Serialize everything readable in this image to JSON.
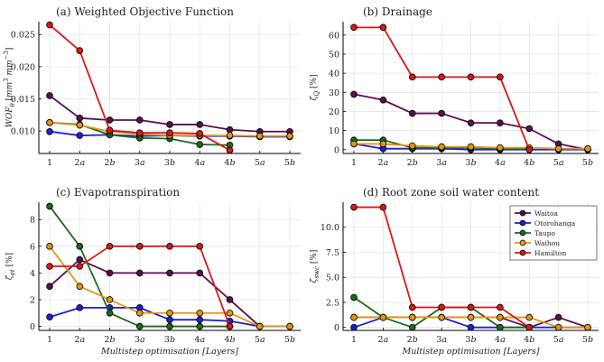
{
  "colors": {
    "Waitoa": "#5a0f4f",
    "Otorohanga": "#1f1fd1",
    "Taupo": "#1c6b1c",
    "Waihou": "#e09614",
    "Hamilton": "#d81818"
  },
  "legend": {
    "position": "top-right of panel (d)",
    "entries": [
      "Waitoa",
      "Otorohanga",
      "Taupo",
      "Waihou",
      "Hamilton"
    ]
  },
  "chart_data": [
    {
      "type": "line",
      "title": "(a) Weighted Objective Function",
      "xlabel": "",
      "ylabel": "WOF_θ [mm³ mm⁻³]",
      "x": [
        "1",
        "2a",
        "2b",
        "3a",
        "3b",
        "4a",
        "4b",
        "5a",
        "5b"
      ],
      "ylim": [
        0.0065,
        0.027
      ],
      "yticks": [
        0.01,
        0.015,
        0.02,
        0.025
      ],
      "ytick_labels": [
        "0.010",
        "0.015",
        "0.020",
        "0.025"
      ],
      "grid": true,
      "series": [
        {
          "name": "Waitoa",
          "values": [
            0.0155,
            0.012,
            0.0117,
            0.0117,
            0.011,
            0.011,
            0.0102,
            0.0099,
            0.0099
          ]
        },
        {
          "name": "Otorohanga",
          "values": [
            0.0099,
            0.0093,
            0.0094,
            0.0092,
            0.0093,
            0.0092,
            0.0092,
            0.0091,
            0.0091
          ]
        },
        {
          "name": "Taupo",
          "values": [
            0.0113,
            0.011,
            0.0094,
            0.0089,
            0.0088,
            0.0079,
            0.0078,
            null,
            null
          ]
        },
        {
          "name": "Waihou",
          "values": [
            0.0113,
            0.0109,
            0.0099,
            0.0095,
            0.0093,
            0.0093,
            0.0093,
            0.0092,
            0.0092
          ]
        },
        {
          "name": "Hamilton",
          "values": [
            0.0265,
            0.0225,
            0.0101,
            0.0097,
            0.0097,
            0.0096,
            0.007,
            null,
            null
          ]
        }
      ]
    },
    {
      "type": "line",
      "title": "(b) Drainage",
      "xlabel": "",
      "ylabel": "ζ_Q [%]",
      "x": [
        "1",
        "2a",
        "2b",
        "3a",
        "3b",
        "4a",
        "4b",
        "5a",
        "5b"
      ],
      "ylim": [
        -2,
        67
      ],
      "yticks": [
        0,
        10,
        20,
        30,
        40,
        50,
        60
      ],
      "ytick_labels": [
        "0",
        "10",
        "20",
        "30",
        "40",
        "50",
        "60"
      ],
      "grid": true,
      "series": [
        {
          "name": "Waitoa",
          "values": [
            29,
            26,
            19,
            19,
            14,
            14,
            11,
            3,
            0
          ]
        },
        {
          "name": "Otorohanga",
          "values": [
            3,
            0.5,
            0.5,
            0.5,
            0,
            0,
            0,
            0,
            0
          ]
        },
        {
          "name": "Taupo",
          "values": [
            5,
            5,
            1,
            1,
            1,
            0.5,
            0.5,
            null,
            null
          ]
        },
        {
          "name": "Waihou",
          "values": [
            3,
            3,
            2,
            1.5,
            1.5,
            1,
            1,
            0.5,
            0.5
          ]
        },
        {
          "name": "Hamilton",
          "values": [
            64,
            64,
            38,
            38,
            38,
            38,
            0,
            null,
            null
          ]
        }
      ]
    },
    {
      "type": "line",
      "title": "(c) Evapotranspiration",
      "xlabel": "Multistep optimisation [Layers]",
      "ylabel": "ζ_et [%]",
      "x": [
        "1",
        "2a",
        "2b",
        "3a",
        "3b",
        "4a",
        "4b",
        "5a",
        "5b"
      ],
      "ylim": [
        -0.3,
        9.3
      ],
      "yticks": [
        0,
        2,
        4,
        6,
        8
      ],
      "ytick_labels": [
        "0",
        "2",
        "4",
        "6",
        "8"
      ],
      "grid": true,
      "series": [
        {
          "name": "Waitoa",
          "values": [
            3,
            5,
            4,
            4,
            4,
            4,
            2,
            0,
            0
          ]
        },
        {
          "name": "Otorohanga",
          "values": [
            0.7,
            1.4,
            1.4,
            1.4,
            0.5,
            0.5,
            0.4,
            0,
            0
          ]
        },
        {
          "name": "Taupo",
          "values": [
            9,
            6,
            1,
            0,
            0,
            0,
            0,
            null,
            null
          ]
        },
        {
          "name": "Waihou",
          "values": [
            6,
            3,
            2,
            1,
            1,
            1,
            1,
            0,
            0
          ]
        },
        {
          "name": "Hamilton",
          "values": [
            4.5,
            4.5,
            6,
            6,
            6,
            6,
            0,
            null,
            null
          ]
        }
      ]
    },
    {
      "type": "line",
      "title": "(d) Root zone soil water content",
      "xlabel": "Multistep optimisation [Layers]",
      "ylabel": "ζ_swc [%]",
      "x": [
        "1",
        "2a",
        "2b",
        "3a",
        "3b",
        "4a",
        "4b",
        "5a",
        "5b"
      ],
      "ylim": [
        -0.3,
        12.5
      ],
      "yticks": [
        0,
        2.5,
        5.0,
        7.5,
        10.0
      ],
      "ytick_labels": [
        "0",
        "2.5",
        "5.0",
        "7.5",
        "10.0"
      ],
      "grid": true,
      "series": [
        {
          "name": "Waitoa",
          "values": [
            1,
            1,
            1,
            1,
            1,
            1,
            0,
            1,
            0
          ]
        },
        {
          "name": "Otorohanga",
          "values": [
            0,
            1,
            1,
            1,
            0,
            0,
            0,
            0,
            0
          ]
        },
        {
          "name": "Taupo",
          "values": [
            3,
            1,
            0,
            2,
            2,
            0,
            0,
            null,
            null
          ]
        },
        {
          "name": "Waihou",
          "values": [
            1,
            1,
            1,
            1,
            1,
            1,
            1,
            0,
            0
          ]
        },
        {
          "name": "Hamilton",
          "values": [
            12,
            12,
            2,
            2,
            2,
            2,
            0,
            null,
            null
          ]
        }
      ]
    }
  ]
}
